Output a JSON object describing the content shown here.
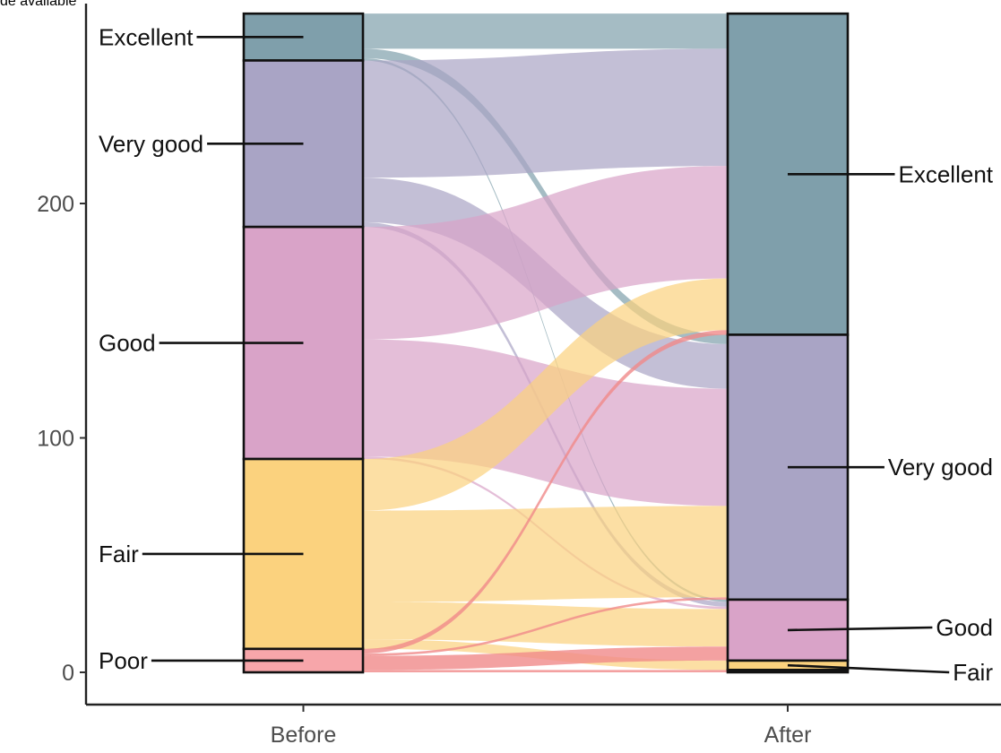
{
  "corner_note": "de available",
  "colors": {
    "Excellent": "#7f9fab",
    "Very good": "#a9a4c5",
    "Good": "#d9a3c8",
    "Fair": "#fbd27e",
    "Poor": "#f7a6aa",
    "poor_flow": "#f08a8a"
  },
  "chart_data": {
    "type": "alluvial",
    "title": "",
    "xlabel": "",
    "ylabel": "",
    "axes": [
      "Before",
      "After"
    ],
    "ylim": [
      0,
      280
    ],
    "y_ticks": [
      0,
      100,
      200
    ],
    "grid": false,
    "strata_order_top_to_bottom": [
      "Excellent",
      "Very good",
      "Good",
      "Fair",
      "Poor"
    ],
    "before": [
      {
        "label": "Excellent",
        "value": 20
      },
      {
        "label": "Very good",
        "value": 71
      },
      {
        "label": "Good",
        "value": 99
      },
      {
        "label": "Fair",
        "value": 81
      },
      {
        "label": "Poor",
        "value": 10
      }
    ],
    "after": [
      {
        "label": "Excellent",
        "value": 137
      },
      {
        "label": "Very good",
        "value": 113
      },
      {
        "label": "Good",
        "value": 26
      },
      {
        "label": "Fair",
        "value": 4
      },
      {
        "label": "Poor",
        "value": 1
      }
    ],
    "flows": [
      {
        "from": "Excellent",
        "to": "Excellent",
        "value": 15
      },
      {
        "from": "Excellent",
        "to": "Very good",
        "value": 4
      },
      {
        "from": "Excellent",
        "to": "Good",
        "value": 1
      },
      {
        "from": "Very good",
        "to": "Excellent",
        "value": 50
      },
      {
        "from": "Very good",
        "to": "Very good",
        "value": 19
      },
      {
        "from": "Very good",
        "to": "Good",
        "value": 2
      },
      {
        "from": "Good",
        "to": "Excellent",
        "value": 48
      },
      {
        "from": "Good",
        "to": "Very good",
        "value": 50
      },
      {
        "from": "Good",
        "to": "Good",
        "value": 1
      },
      {
        "from": "Fair",
        "to": "Excellent",
        "value": 22
      },
      {
        "from": "Fair",
        "to": "Very good",
        "value": 39
      },
      {
        "from": "Fair",
        "to": "Good",
        "value": 16
      },
      {
        "from": "Fair",
        "to": "Fair",
        "value": 4
      },
      {
        "from": "Poor",
        "to": "Excellent",
        "value": 2
      },
      {
        "from": "Poor",
        "to": "Very good",
        "value": 1
      },
      {
        "from": "Poor",
        "to": "Good",
        "value": 6
      },
      {
        "from": "Poor",
        "to": "Poor",
        "value": 1
      }
    ],
    "labels_before": [
      "Excellent",
      "Very good",
      "Good",
      "Fair",
      "Poor"
    ],
    "labels_after": [
      "Excellent",
      "Very good",
      "Good",
      "Fair"
    ]
  }
}
